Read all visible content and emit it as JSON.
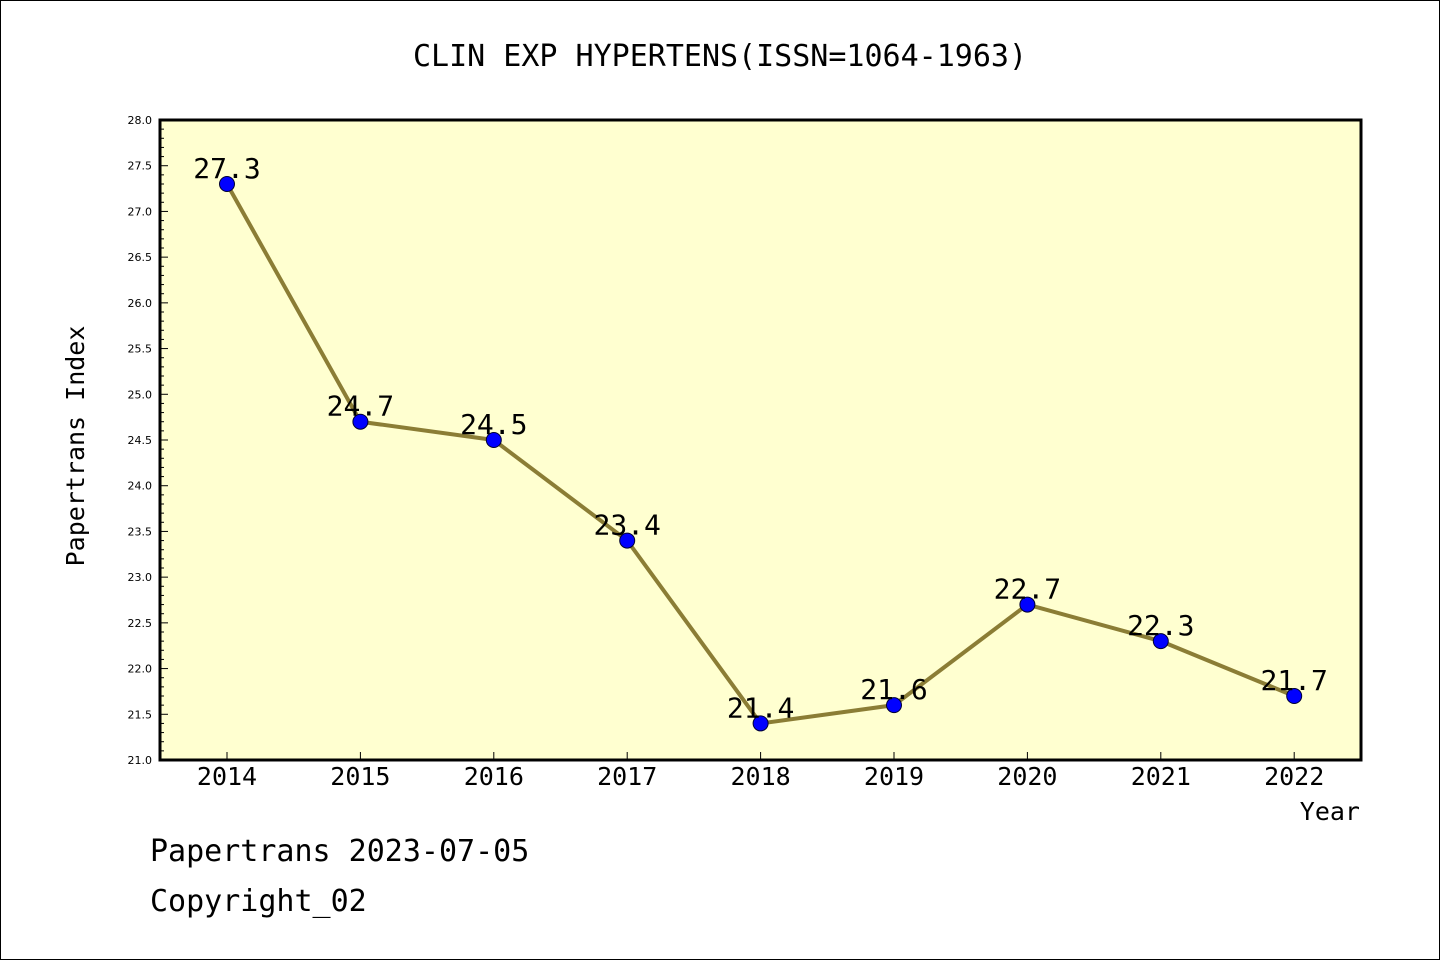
{
  "chart_data": {
    "type": "line",
    "title": "CLIN EXP HYPERTENS(ISSN=1064-1963)",
    "xlabel": "Year",
    "ylabel": "Papertrans Index",
    "categories": [
      "2014",
      "2015",
      "2016",
      "2017",
      "2018",
      "2019",
      "2020",
      "2021",
      "2022"
    ],
    "series": [
      {
        "values": [
          27.3,
          24.7,
          24.5,
          23.4,
          21.4,
          21.6,
          22.7,
          22.3,
          21.7
        ]
      }
    ],
    "data_labels": [
      "27.3",
      "24.7",
      "24.5",
      "23.4",
      "21.4",
      "21.6",
      "22.7",
      "22.3",
      "21.7"
    ],
    "ylim": [
      21.0,
      28.0
    ],
    "yticks": [
      "21.0",
      "21.5",
      "22.0",
      "22.5",
      "23.0",
      "23.5",
      "24.0",
      "24.5",
      "25.0",
      "25.5",
      "26.0",
      "26.5",
      "27.0",
      "27.5",
      "28.0"
    ],
    "grid": false,
    "colors": {
      "plot_background": "#ffffd0",
      "line": "#8b7d35",
      "marker": "#0000ff"
    }
  },
  "footer": {
    "line1": "Papertrans 2023-07-05",
    "line2": "Copyright_02"
  }
}
